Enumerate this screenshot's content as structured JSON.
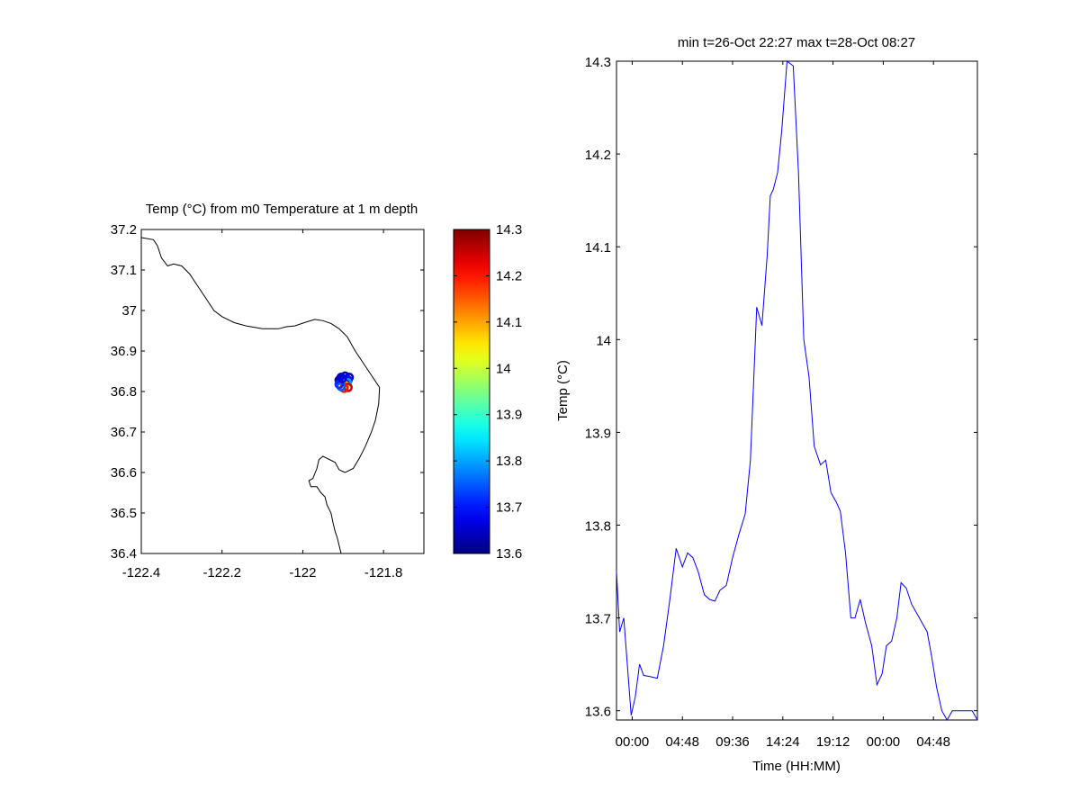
{
  "chart_data": [
    {
      "type": "map",
      "title": "Temp (°C) from m0 Temperature at 1 m depth",
      "xlim": [
        -122.4,
        -121.7
      ],
      "ylim": [
        36.4,
        37.2
      ],
      "xticks": [
        -122.4,
        -122.2,
        -122,
        -121.8
      ],
      "xtick_labels": [
        "-122.4",
        "-122.2",
        "-122",
        "-121.8"
      ],
      "yticks": [
        36.4,
        36.5,
        36.6,
        36.7,
        36.8,
        36.9,
        37,
        37.1,
        37.2
      ],
      "ytick_labels": [
        "36.4",
        "36.5",
        "36.6",
        "36.7",
        "36.8",
        "36.9",
        "37",
        "37.1",
        "37.2"
      ],
      "coastline": [
        [
          -122.4,
          37.18
        ],
        [
          -122.37,
          37.175
        ],
        [
          -122.36,
          37.16
        ],
        [
          -122.35,
          37.13
        ],
        [
          -122.335,
          37.11
        ],
        [
          -122.32,
          37.115
        ],
        [
          -122.3,
          37.11
        ],
        [
          -122.28,
          37.09
        ],
        [
          -122.26,
          37.06
        ],
        [
          -122.24,
          37.03
        ],
        [
          -122.22,
          37.0
        ],
        [
          -122.2,
          36.985
        ],
        [
          -122.17,
          36.97
        ],
        [
          -122.14,
          36.962
        ],
        [
          -122.1,
          36.955
        ],
        [
          -122.06,
          36.955
        ],
        [
          -122.04,
          36.96
        ],
        [
          -122.02,
          36.962
        ],
        [
          -121.99,
          36.972
        ],
        [
          -121.97,
          36.978
        ],
        [
          -121.95,
          36.975
        ],
        [
          -121.93,
          36.968
        ],
        [
          -121.91,
          36.955
        ],
        [
          -121.89,
          36.935
        ],
        [
          -121.87,
          36.9
        ],
        [
          -121.85,
          36.87
        ],
        [
          -121.83,
          36.84
        ],
        [
          -121.81,
          36.81
        ],
        [
          -121.812,
          36.77
        ],
        [
          -121.82,
          36.73
        ],
        [
          -121.83,
          36.7
        ],
        [
          -121.845,
          36.665
        ],
        [
          -121.86,
          36.635
        ],
        [
          -121.875,
          36.61
        ],
        [
          -121.895,
          36.6
        ],
        [
          -121.91,
          36.607
        ],
        [
          -121.92,
          36.625
        ],
        [
          -121.93,
          36.63
        ],
        [
          -121.95,
          36.64
        ],
        [
          -121.96,
          36.632
        ],
        [
          -121.965,
          36.61
        ],
        [
          -121.975,
          36.585
        ],
        [
          -121.985,
          36.58
        ],
        [
          -121.98,
          36.565
        ],
        [
          -121.965,
          36.565
        ],
        [
          -121.955,
          36.55
        ],
        [
          -121.945,
          36.54
        ],
        [
          -121.94,
          36.52
        ],
        [
          -121.93,
          36.5
        ],
        [
          -121.925,
          36.475
        ],
        [
          -121.92,
          36.455
        ],
        [
          -121.915,
          36.44
        ],
        [
          -121.91,
          36.42
        ],
        [
          -121.905,
          36.4
        ]
      ],
      "track": [
        [
          -121.905,
          36.83,
          13.65
        ],
        [
          -121.895,
          36.838,
          13.62
        ],
        [
          -121.885,
          36.835,
          13.66
        ],
        [
          -121.888,
          36.828,
          13.7
        ],
        [
          -121.9,
          36.825,
          13.63
        ],
        [
          -121.91,
          36.828,
          13.61
        ],
        [
          -121.905,
          36.835,
          13.64
        ],
        [
          -121.895,
          36.83,
          13.68
        ],
        [
          -121.89,
          36.822,
          13.8
        ],
        [
          -121.895,
          36.815,
          14.1
        ],
        [
          -121.888,
          36.81,
          14.25
        ],
        [
          -121.898,
          36.808,
          14.2
        ],
        [
          -121.905,
          36.812,
          13.75
        ],
        [
          -121.91,
          36.818,
          13.72
        ],
        [
          -121.902,
          36.832,
          13.66
        ]
      ],
      "colorbar": {
        "colormap": "jet",
        "range": [
          13.6,
          14.3
        ],
        "ticks": [
          13.6,
          13.7,
          13.8,
          13.9,
          14,
          14.1,
          14.2,
          14.3
        ],
        "tick_labels": [
          "13.6",
          "13.7",
          "13.8",
          "13.9",
          "14",
          "14.1",
          "14.2",
          "14.3"
        ]
      }
    },
    {
      "type": "line",
      "title": "min t=26-Oct 22:27 max t=28-Oct 08:27",
      "xlabel": "Time (HH:MM)",
      "ylabel": "Temp (°C)",
      "xlim_hours": [
        -1.5,
        33
      ],
      "ylim": [
        13.59,
        14.3
      ],
      "xticks_hours": [
        0,
        4.8,
        9.6,
        14.4,
        19.2,
        24,
        28.8
      ],
      "xtick_labels": [
        "00:00",
        "04:48",
        "09:36",
        "14:24",
        "19:12",
        "00:00",
        "04:48"
      ],
      "yticks": [
        13.6,
        13.7,
        13.8,
        13.9,
        14,
        14.1,
        14.2,
        14.3
      ],
      "ytick_labels": [
        "13.6",
        "13.7",
        "13.8",
        "13.9",
        "14",
        "14.1",
        "14.2",
        "14.3"
      ],
      "line_color": "#0000ff",
      "series": [
        {
          "x_hours": [
            -1.5,
            -1.2,
            -0.8,
            -0.4,
            -0.1,
            0.3,
            0.7,
            1.1,
            1.6,
            2.4,
            3.0,
            3.6,
            4.2,
            4.8,
            5.3,
            5.8,
            6.3,
            6.9,
            7.4,
            7.9,
            8.4,
            9.0,
            9.6,
            10.2,
            10.8,
            11.3,
            11.9,
            12.4,
            12.9,
            13.2,
            13.5,
            13.9,
            14.3,
            14.8,
            15.4,
            15.9,
            16.4,
            16.9,
            17.4,
            18.0,
            18.5,
            19.0,
            19.5,
            19.9,
            20.4,
            20.9,
            21.3,
            21.8,
            22.3,
            22.9,
            23.4,
            23.9,
            24.3,
            24.8,
            25.3,
            25.7,
            26.2,
            26.7,
            27.2,
            27.7,
            28.2,
            28.6,
            29.1,
            29.6,
            30.1,
            30.6,
            31.1,
            31.5,
            32.0,
            32.5,
            33.0
          ],
          "values": [
            13.75,
            13.685,
            13.7,
            13.64,
            13.595,
            13.615,
            13.65,
            13.638,
            13.637,
            13.635,
            13.67,
            13.72,
            13.775,
            13.755,
            13.77,
            13.765,
            13.75,
            13.725,
            13.72,
            13.718,
            13.73,
            13.735,
            13.765,
            13.79,
            13.812,
            13.87,
            14.035,
            14.015,
            14.09,
            14.155,
            14.162,
            14.18,
            14.225,
            14.3,
            14.295,
            14.18,
            14.0,
            13.96,
            13.885,
            13.865,
            13.87,
            13.835,
            13.825,
            13.815,
            13.77,
            13.7,
            13.7,
            13.72,
            13.695,
            13.67,
            13.628,
            13.64,
            13.67,
            13.675,
            13.7,
            13.738,
            13.732,
            13.715,
            13.705,
            13.695,
            13.685,
            13.66,
            13.625,
            13.6,
            13.59,
            13.6,
            13.6,
            13.6,
            13.6,
            13.6,
            13.59
          ]
        }
      ]
    }
  ]
}
